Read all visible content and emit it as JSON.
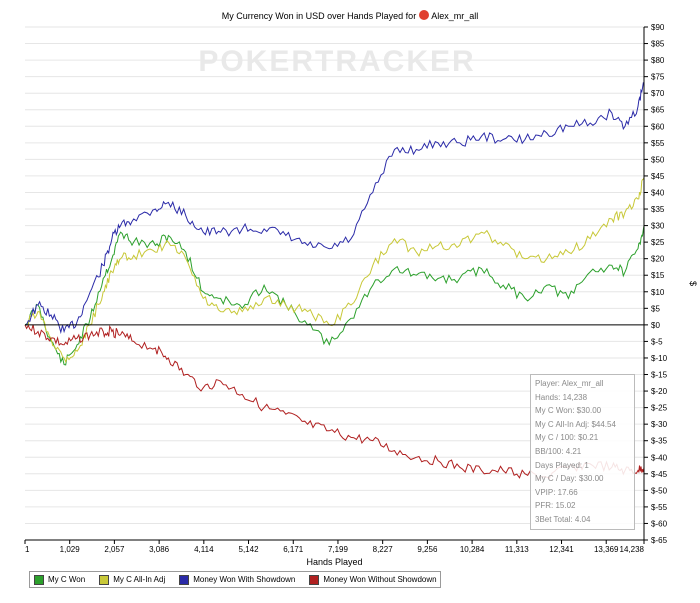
{
  "title": {
    "text": "My Currency Won in USD over Hands Played for",
    "player": "Alex_mr_all"
  },
  "watermark": "POKERTRACKER",
  "stats_box": [
    "Player: Alex_mr_all",
    "Hands: 14,238",
    "My C Won: $30.00",
    "My C All-In Adj: $44.54",
    "My C / 100: $0.21",
    "BB/100: 4.21",
    "Days Played: 1",
    "My C / Day: $30.00",
    "VPIP: 17.66",
    "PFR: 15.02",
    "3Bet Total: 4.04"
  ],
  "chart_data": {
    "type": "line",
    "xlabel": "Hands Played",
    "ylabel": "$",
    "xlim": [
      1,
      14238
    ],
    "ylim": [
      -65,
      90
    ],
    "x_ticks": [
      "1",
      "1,029",
      "2,057",
      "3,086",
      "4,114",
      "5,142",
      "6,171",
      "7,199",
      "8,227",
      "9,256",
      "10,284",
      "11,313",
      "12,341",
      "13,369",
      "14,238"
    ],
    "y_ticks": [
      "$90",
      "$85",
      "$80",
      "$75",
      "$70",
      "$65",
      "$60",
      "$55",
      "$50",
      "$45",
      "$40",
      "$35",
      "$30",
      "$25",
      "$20",
      "$15",
      "$10",
      "$5",
      "$0",
      "$-5",
      "$-10",
      "$-15",
      "$-20",
      "$-25",
      "$-30",
      "$-35",
      "$-40",
      "$-45",
      "$-50",
      "$-55",
      "$-60",
      "$-65"
    ],
    "grid": true,
    "legend": "bottom-left",
    "x": [
      1,
      300,
      600,
      900,
      1200,
      1500,
      1800,
      2000,
      2200,
      2500,
      3000,
      3300,
      3700,
      4100,
      4500,
      5000,
      5500,
      6000,
      6500,
      7000,
      7500,
      8000,
      8500,
      9000,
      9500,
      10000,
      10500,
      11000,
      11500,
      12000,
      12500,
      13000,
      13500,
      13800,
      14100,
      14238
    ],
    "series": [
      {
        "name": "My C Won",
        "color": "#2ca02c",
        "values": [
          0,
          6,
          -5,
          -12,
          -6,
          2,
          14,
          20,
          28,
          25,
          24,
          27,
          22,
          10,
          8,
          5,
          12,
          6,
          0,
          -6,
          2,
          12,
          17,
          15,
          14,
          14,
          17,
          12,
          8,
          12,
          8,
          16,
          18,
          16,
          23,
          30
        ]
      },
      {
        "name": "My C All-In Adj",
        "color": "#c8c838",
        "values": [
          0,
          4,
          -4,
          -10,
          -8,
          0,
          10,
          16,
          20,
          21,
          22,
          25,
          20,
          8,
          4,
          4,
          8,
          6,
          4,
          0,
          6,
          18,
          26,
          22,
          24,
          24,
          28,
          24,
          20,
          20,
          22,
          26,
          32,
          34,
          38,
          44.54
        ]
      },
      {
        "name": "Money Won With Showdown",
        "color": "#2b2ba8",
        "values": [
          0,
          6,
          3,
          -2,
          1,
          10,
          18,
          26,
          30,
          32,
          35,
          37,
          33,
          28,
          28,
          29,
          29,
          27,
          24,
          23,
          26,
          40,
          53,
          53,
          55,
          55,
          57,
          56,
          56,
          58,
          60,
          61,
          64,
          60,
          66,
          73
        ]
      },
      {
        "name": "Money Won Without Showdown",
        "color": "#b02020",
        "values": [
          0,
          -2,
          -4,
          -6,
          -4,
          -3,
          -2,
          -2,
          -3,
          -5,
          -7,
          -10,
          -15,
          -19,
          -17,
          -21,
          -25,
          -27,
          -30,
          -32,
          -34,
          -35,
          -38,
          -40,
          -41,
          -43,
          -44,
          -44,
          -45,
          -46,
          -43,
          -42,
          -43,
          -44,
          -44,
          -43
        ]
      }
    ]
  }
}
